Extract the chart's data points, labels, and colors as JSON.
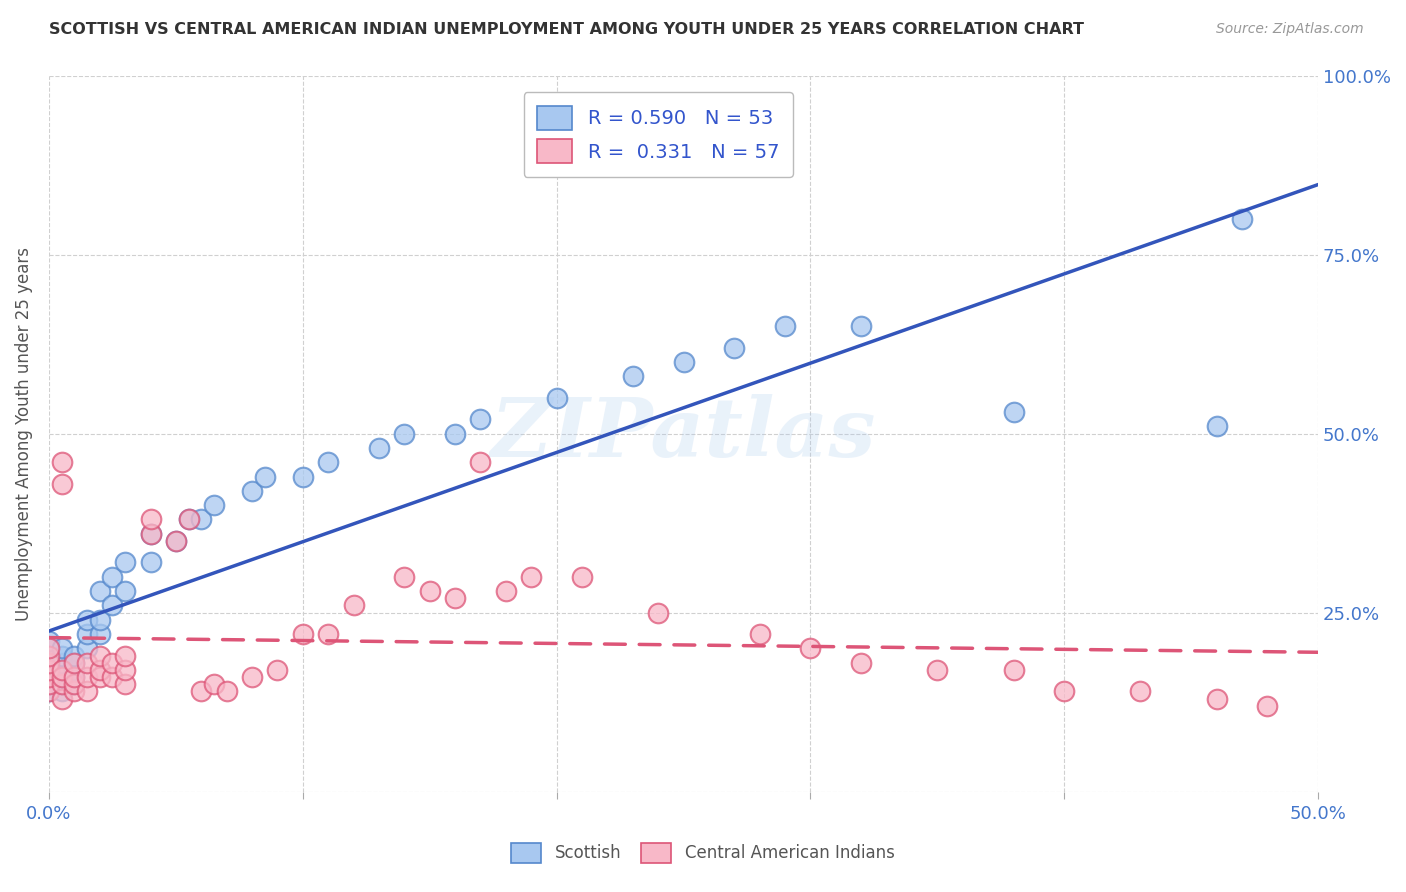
{
  "title": "SCOTTISH VS CENTRAL AMERICAN INDIAN UNEMPLOYMENT AMONG YOUTH UNDER 25 YEARS CORRELATION CHART",
  "source": "Source: ZipAtlas.com",
  "ylabel": "Unemployment Among Youth under 25 years",
  "xlim": [
    0.0,
    0.5
  ],
  "ylim": [
    0.0,
    1.0
  ],
  "background_color": "#ffffff",
  "grid_color": "#d0d0d0",
  "watermark": "ZIPatlas",
  "scottish_color": "#a8c8f0",
  "scottish_edge": "#5588cc",
  "pink_color": "#f8b8c8",
  "pink_edge": "#dd5577",
  "blue_line_color": "#3355bb",
  "pink_line_color": "#dd5577",
  "R_scottish": 0.59,
  "N_scottish": 53,
  "R_central": 0.331,
  "N_central": 57,
  "scottish_x": [
    0.0,
    0.0,
    0.0,
    0.0,
    0.0,
    0.0,
    0.0,
    0.0,
    0.005,
    0.005,
    0.005,
    0.005,
    0.005,
    0.005,
    0.005,
    0.01,
    0.01,
    0.01,
    0.01,
    0.01,
    0.015,
    0.015,
    0.015,
    0.02,
    0.02,
    0.02,
    0.025,
    0.025,
    0.03,
    0.03,
    0.04,
    0.04,
    0.05,
    0.055,
    0.06,
    0.065,
    0.08,
    0.085,
    0.1,
    0.11,
    0.13,
    0.14,
    0.16,
    0.17,
    0.2,
    0.23,
    0.25,
    0.27,
    0.29,
    0.32,
    0.38,
    0.46,
    0.47
  ],
  "scottish_y": [
    0.14,
    0.15,
    0.16,
    0.17,
    0.18,
    0.19,
    0.2,
    0.21,
    0.14,
    0.15,
    0.16,
    0.17,
    0.18,
    0.19,
    0.2,
    0.15,
    0.16,
    0.17,
    0.18,
    0.19,
    0.2,
    0.22,
    0.24,
    0.22,
    0.24,
    0.28,
    0.26,
    0.3,
    0.28,
    0.32,
    0.32,
    0.36,
    0.35,
    0.38,
    0.38,
    0.4,
    0.42,
    0.44,
    0.44,
    0.46,
    0.48,
    0.5,
    0.5,
    0.52,
    0.55,
    0.58,
    0.6,
    0.62,
    0.65,
    0.65,
    0.53,
    0.51,
    0.8
  ],
  "central_x": [
    0.0,
    0.0,
    0.0,
    0.0,
    0.0,
    0.0,
    0.0,
    0.005,
    0.005,
    0.005,
    0.005,
    0.005,
    0.005,
    0.01,
    0.01,
    0.01,
    0.01,
    0.015,
    0.015,
    0.015,
    0.02,
    0.02,
    0.02,
    0.025,
    0.025,
    0.03,
    0.03,
    0.03,
    0.04,
    0.04,
    0.05,
    0.055,
    0.06,
    0.065,
    0.07,
    0.08,
    0.09,
    0.1,
    0.11,
    0.12,
    0.14,
    0.15,
    0.16,
    0.17,
    0.18,
    0.19,
    0.21,
    0.24,
    0.28,
    0.3,
    0.32,
    0.35,
    0.38,
    0.4,
    0.43,
    0.46,
    0.48
  ],
  "central_y": [
    0.14,
    0.15,
    0.16,
    0.17,
    0.18,
    0.19,
    0.2,
    0.13,
    0.15,
    0.16,
    0.17,
    0.43,
    0.46,
    0.14,
    0.15,
    0.16,
    0.18,
    0.14,
    0.16,
    0.18,
    0.16,
    0.17,
    0.19,
    0.16,
    0.18,
    0.15,
    0.17,
    0.19,
    0.36,
    0.38,
    0.35,
    0.38,
    0.14,
    0.15,
    0.14,
    0.16,
    0.17,
    0.22,
    0.22,
    0.26,
    0.3,
    0.28,
    0.27,
    0.46,
    0.28,
    0.3,
    0.3,
    0.25,
    0.22,
    0.2,
    0.18,
    0.17,
    0.17,
    0.14,
    0.14,
    0.13,
    0.12
  ]
}
